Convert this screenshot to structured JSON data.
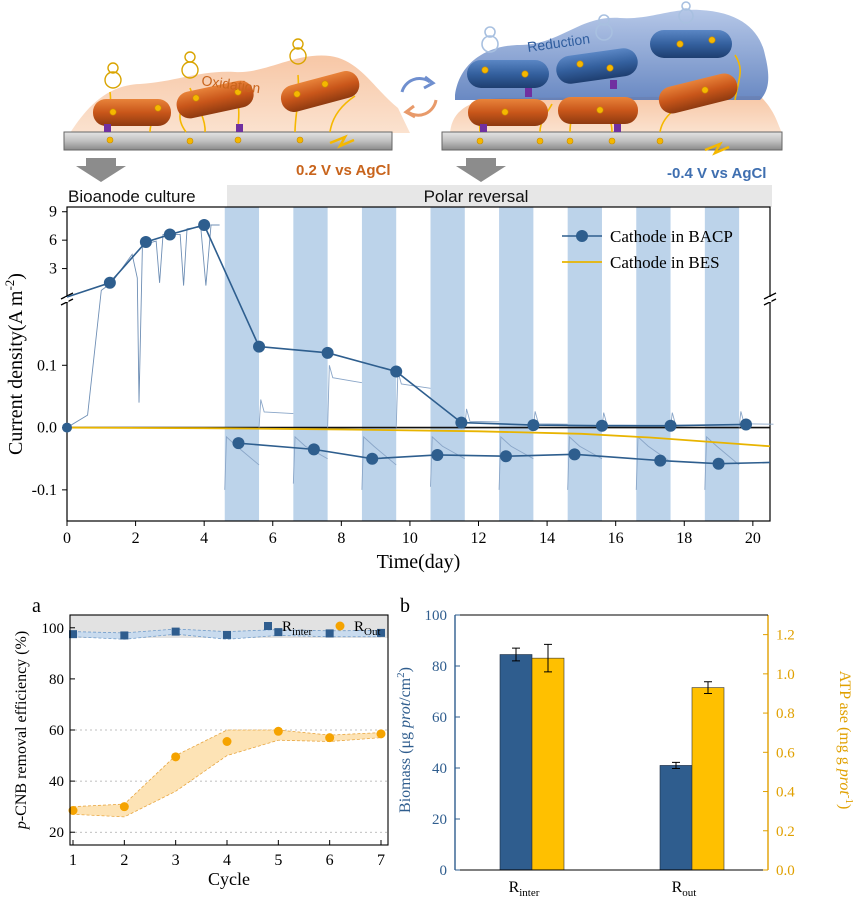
{
  "illustration": {
    "oxidation_label": "Oxidation",
    "reduction_label": "Reduction",
    "anode_potential": "0.2 V vs AgCl",
    "cathode_potential": "-0.4 V vs AgCl"
  },
  "colors": {
    "bar_blue": "#2f5d8e",
    "bar_yellow": "#ffc000",
    "bacp_line": "#2e5e8e",
    "bes_line": "#e8b400",
    "band": "#bcd3ea",
    "phase_bar": "#e7e7e7",
    "orange_text": "#c8641c",
    "blue_text": "#3f6fb0",
    "right_axis": "#e0a000"
  },
  "chart_data": [
    {
      "type": "line",
      "phases": [
        "Bioanode culture",
        "Polar reversal"
      ],
      "xlabel": "Time(day)",
      "ylabel": "Current density(A m",
      "ylabel_sup": "-2",
      "ylabel_end": ")",
      "xlim": [
        0,
        20.5
      ],
      "x_ticks": [
        0,
        2,
        4,
        6,
        8,
        10,
        12,
        14,
        16,
        18,
        20
      ],
      "y_ticks_upper": [
        3,
        6,
        9
      ],
      "y_ticks_lower": [
        "-0.1",
        "0.0",
        "0.1"
      ],
      "ylim_upper": [
        0,
        9.5
      ],
      "ylim_lower": [
        -0.15,
        0.2
      ],
      "reversal_bands": [
        [
          4.6,
          5.6
        ],
        [
          6.6,
          7.6
        ],
        [
          8.6,
          9.6
        ],
        [
          10.6,
          11.6
        ],
        [
          12.6,
          13.6
        ],
        [
          14.6,
          15.6
        ],
        [
          16.6,
          17.6
        ],
        [
          18.6,
          19.6
        ]
      ],
      "series": [
        {
          "name": "Cathode in BACP",
          "upper": [
            [
              0,
              0
            ],
            [
              1.25,
              1.5
            ],
            [
              2.3,
              5.8
            ],
            [
              3.0,
              6.6
            ],
            [
              4.0,
              7.6
            ]
          ],
          "lower_top": [
            [
              4.0,
              0.2
            ],
            [
              5.6,
              0.13
            ],
            [
              7.6,
              0.12
            ],
            [
              9.6,
              0.09
            ],
            [
              11.5,
              0.008
            ],
            [
              13.6,
              0.004
            ],
            [
              15.6,
              0.003
            ],
            [
              17.6,
              0.003
            ],
            [
              19.8,
              0.005
            ]
          ],
          "lower_bottom": [
            [
              5.0,
              -0.025
            ],
            [
              7.2,
              -0.035
            ],
            [
              8.9,
              -0.05
            ],
            [
              10.8,
              -0.044
            ],
            [
              12.8,
              -0.046
            ],
            [
              14.8,
              -0.043
            ],
            [
              17.3,
              -0.053
            ],
            [
              19.0,
              -0.058
            ],
            [
              20.5,
              -0.056
            ]
          ]
        },
        {
          "name": "Cathode in BES",
          "lower": [
            [
              0,
              0
            ],
            [
              4,
              -0.001
            ],
            [
              8,
              -0.003
            ],
            [
              12,
              -0.006
            ],
            [
              15,
              -0.01
            ],
            [
              17,
              -0.016
            ],
            [
              19,
              -0.024
            ],
            [
              20.5,
              -0.03
            ]
          ]
        }
      ]
    },
    {
      "panel_label": "a",
      "type": "scatter",
      "xlabel": "Cycle",
      "ylabel_italic": "p",
      "ylabel": "-CNB removal efficiency (%)",
      "x": [
        1,
        2,
        3,
        4,
        5,
        6,
        7
      ],
      "ylim": [
        15,
        105
      ],
      "y_ticks": [
        20,
        40,
        60,
        80,
        100
      ],
      "series": [
        {
          "name": "R",
          "sub": "inter",
          "values": [
            97.5,
            97,
            98.5,
            97.2,
            98.3,
            97.8,
            98
          ]
        },
        {
          "name": "R",
          "sub": "Out",
          "values": [
            28.5,
            30,
            49.5,
            55.5,
            59.5,
            57,
            58.5
          ]
        }
      ]
    },
    {
      "panel_label": "b",
      "type": "bar",
      "categories": [
        [
          "R",
          "inter"
        ],
        [
          "R",
          "out"
        ]
      ],
      "ylabel_left": "Biomass (μg ",
      "ylabel_left_italic": "prot",
      "ylabel_left_end": "/cm",
      "ylabel_left_sup": "2",
      "ylabel_left_close": ")",
      "ylabel_right": "ATP ase (mg g ",
      "ylabel_right_italic": "prot",
      "ylabel_right_sup": "-1",
      "ylabel_right_close": ")",
      "ylim_left": [
        0,
        100
      ],
      "ylim_right": [
        0,
        1.3
      ],
      "left_ticks": [
        0,
        20,
        40,
        60,
        80,
        100
      ],
      "right_ticks": [
        "0.0",
        "0.2",
        "0.4",
        "0.6",
        "0.8",
        "1.0",
        "1.2"
      ],
      "series": [
        {
          "axis": "left",
          "values": [
            84.5,
            41
          ],
          "errors": [
            2.5,
            1.2
          ]
        },
        {
          "axis": "right",
          "values": [
            1.08,
            0.93
          ],
          "errors": [
            0.07,
            0.03
          ]
        }
      ]
    }
  ]
}
